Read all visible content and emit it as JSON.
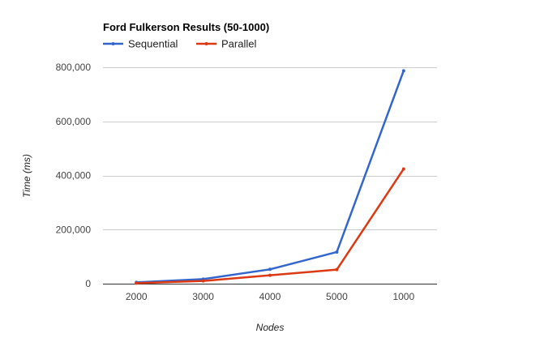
{
  "chart_data": {
    "type": "line",
    "title": "Ford Fulkerson Results (50-1000)",
    "xlabel": "Nodes",
    "ylabel": "Time (ms)",
    "categories": [
      "2000",
      "3000",
      "4000",
      "5000",
      "1000"
    ],
    "series": [
      {
        "name": "Sequential",
        "color": "#3366cc",
        "values": [
          5000,
          17000,
          53000,
          117000,
          787000
        ]
      },
      {
        "name": "Parallel",
        "color": "#dc3912",
        "values": [
          2000,
          10000,
          31000,
          52000,
          424000
        ]
      }
    ],
    "ylim": [
      0,
      800000
    ],
    "yticks": [
      0,
      200000,
      400000,
      600000,
      800000
    ],
    "ytick_labels": [
      "0",
      "200,000",
      "400,000",
      "600,000",
      "800,000"
    ],
    "grid": true,
    "legend_position": "top-left"
  }
}
